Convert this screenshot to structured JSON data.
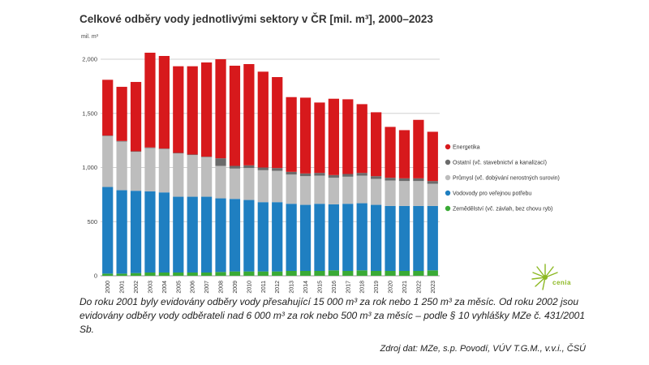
{
  "title_html": "Celkové odběry vody jednotlivými sektory v ČR [mil. m³], 2000–2023",
  "unit_label": "mil. m³",
  "note": {
    "line1": "Do roku 2001 byly evidovány odběry vody přesahující 15 000 m³ za rok nebo 1 250 m³ za měsíc. Od roku 2002 jsou evidovány odběry vody odběrateli nad 6 000 m³ za rok nebo 500 m³ za měsíc – podle § 10 vyhlášky MZe č. 431/2001 Sb."
  },
  "source": "Zdroj dat: MZe, s.p. Povodí, VÚV T.G.M., v.v.i., ČSÚ",
  "logo": {
    "text": "cenia"
  },
  "chart_data": {
    "type": "bar",
    "stacked": true,
    "title": "Celkové odběry vody jednotlivými sektory v ČR [mil. m³], 2000–2023",
    "ylabel": "mil. m³",
    "ylim": [
      0,
      2000
    ],
    "yticks": [
      0,
      500,
      1000,
      1500,
      2000
    ],
    "ytick_labels": [
      "0",
      "500",
      "1,000",
      "1,500",
      "2,000"
    ],
    "grid": true,
    "legend_position": "right",
    "categories": [
      "2000",
      "2001",
      "2002",
      "2003",
      "2004",
      "2005",
      "2006",
      "2007",
      "2008",
      "2009",
      "2010",
      "2011",
      "2012",
      "2013",
      "2014",
      "2015",
      "2016",
      "2017",
      "2018",
      "2019",
      "2020",
      "2021",
      "2022",
      "2023"
    ],
    "series": [
      {
        "name": "Zemědělství (vč. závlah, bez chovu ryb)",
        "color": "#3aaa35",
        "values": [
          20,
          20,
          25,
          30,
          30,
          30,
          30,
          30,
          35,
          40,
          40,
          40,
          40,
          45,
          45,
          45,
          50,
          45,
          50,
          45,
          45,
          45,
          45,
          50
        ]
      },
      {
        "name": "Vodovody pro veřejnou potřebu",
        "color": "#1f7fc1",
        "values": [
          800,
          770,
          760,
          750,
          740,
          700,
          700,
          700,
          680,
          670,
          660,
          640,
          640,
          620,
          610,
          620,
          610,
          620,
          620,
          610,
          600,
          600,
          600,
          595
        ]
      },
      {
        "name": "Průmysl (vč. dobývání nerostných surovin)",
        "color": "#bdbdbd",
        "values": [
          470,
          450,
          360,
          400,
          400,
          400,
          385,
          365,
          300,
          280,
          295,
          295,
          290,
          270,
          265,
          260,
          245,
          250,
          255,
          240,
          235,
          230,
          230,
          205
        ]
      },
      {
        "name": "Ostatní (vč. stavebnictví a kanalizací)",
        "color": "#6b6b6b",
        "values": [
          5,
          5,
          5,
          5,
          5,
          5,
          5,
          5,
          70,
          25,
          25,
          25,
          25,
          25,
          25,
          25,
          25,
          25,
          25,
          25,
          25,
          25,
          25,
          25
        ]
      },
      {
        "name": "Energetika",
        "color": "#d7191c",
        "values": [
          515,
          500,
          640,
          875,
          855,
          800,
          815,
          870,
          915,
          925,
          935,
          885,
          840,
          690,
          700,
          650,
          705,
          690,
          635,
          590,
          470,
          445,
          540,
          455
        ]
      }
    ],
    "legend_order": [
      "Energetika",
      "Ostatní (vč. stavebnictví a kanalizací)",
      "Průmysl (vč. dobývání nerostných surovin)",
      "Vodovody pro veřejnou potřebu",
      "Zemědělství (vč. závlah, bez chovu ryb)"
    ]
  }
}
